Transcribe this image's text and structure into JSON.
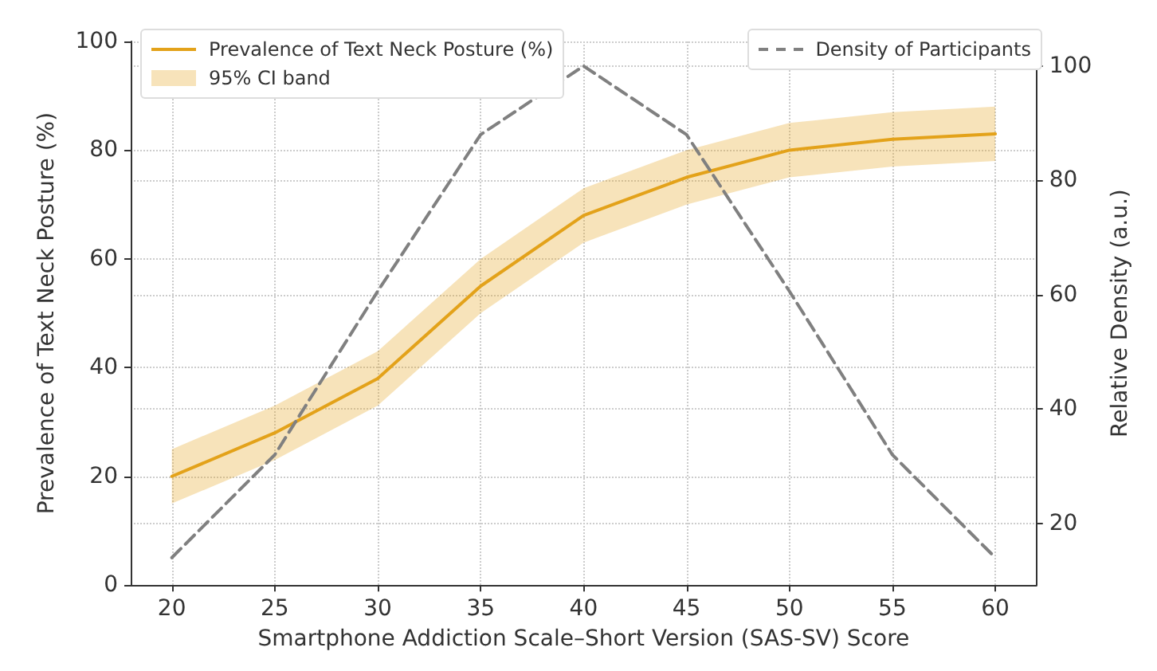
{
  "chart_data": {
    "type": "line",
    "xlabel": "Smartphone Addiction Scale–Short Version (SAS-SV) Score",
    "ylabel": "Prevalence of Text Neck Posture (%)",
    "y2label": "Relative Density (a.u.)",
    "x": [
      20,
      25,
      30,
      35,
      40,
      45,
      50,
      55,
      60
    ],
    "series": [
      {
        "name": "Prevalence of Text Neck Posture (%)",
        "color": "#e3a21a",
        "values": [
          20,
          28,
          38,
          55,
          68,
          75,
          80,
          82,
          83
        ],
        "lower": [
          15,
          23,
          33,
          50,
          63,
          70,
          75,
          77,
          78
        ],
        "upper": [
          25,
          33,
          43,
          60,
          73,
          80,
          85,
          87,
          88
        ]
      },
      {
        "name": "Density of Participants",
        "color": "#808080",
        "axis": "y2",
        "line_style": "dashed",
        "values": [
          14,
          32,
          60.6,
          88,
          100,
          88,
          60.6,
          32,
          14
        ]
      }
    ],
    "annotations": [
      "95% CI band"
    ],
    "xlim": [
      18,
      62
    ],
    "xticks": [
      20,
      25,
      30,
      35,
      40,
      45,
      50,
      55,
      60
    ],
    "ylim": [
      0,
      100
    ],
    "yticks": [
      0,
      20,
      40,
      60,
      80,
      100
    ],
    "y2lim": [
      9.2,
      104.3
    ],
    "y2ticks": [
      20,
      40,
      60,
      80,
      100
    ],
    "grid": true,
    "legend": "top left",
    "line_style": "solid",
    "marker": "none"
  }
}
